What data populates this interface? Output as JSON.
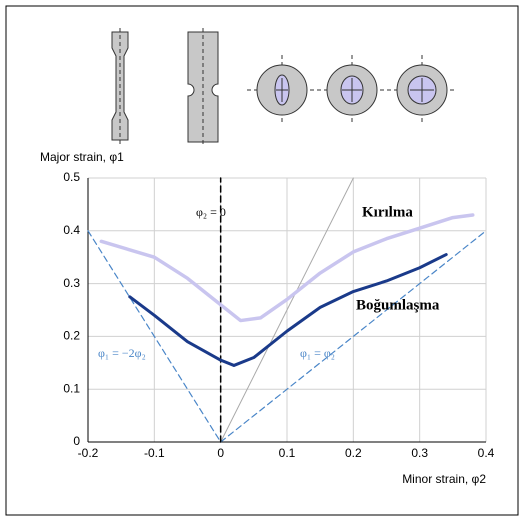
{
  "chart_data": {
    "type": "line",
    "xlabel": "Minor strain, φ2",
    "ylabel": "Major strain, φ1",
    "xlim": [
      -0.2,
      0.4
    ],
    "xticks": [
      -0.2,
      -0.1,
      0,
      0.1,
      0.2,
      0.3,
      0.4
    ],
    "ylim": [
      0,
      0.5
    ],
    "yticks": [
      0,
      0.1,
      0.2,
      0.3,
      0.4,
      0.5
    ],
    "grid": true,
    "series": [
      {
        "name": "Kırılma",
        "color": "#c9c5ef",
        "linewidth": 3.5,
        "dashed": false,
        "x": [
          -0.18,
          -0.1,
          -0.05,
          0,
          0.03,
          0.06,
          0.1,
          0.15,
          0.2,
          0.25,
          0.3,
          0.35,
          0.38
        ],
        "values": [
          0.38,
          0.35,
          0.31,
          0.26,
          0.23,
          0.235,
          0.27,
          0.32,
          0.36,
          0.385,
          0.405,
          0.425,
          0.43
        ]
      },
      {
        "name": "Boğumlaşma",
        "color": "#1a3a8a",
        "linewidth": 3,
        "dashed": false,
        "x": [
          -0.137,
          -0.1,
          -0.05,
          0,
          0.02,
          0.05,
          0.1,
          0.15,
          0.2,
          0.25,
          0.3,
          0.34
        ],
        "values": [
          0.275,
          0.24,
          0.19,
          0.155,
          0.145,
          0.16,
          0.21,
          0.255,
          0.285,
          0.305,
          0.33,
          0.355
        ]
      },
      {
        "name": "φ₂ = 0",
        "color": "#000000",
        "linewidth": 1.5,
        "dashed": true,
        "x": [
          0,
          0
        ],
        "values": [
          0,
          0.5
        ]
      },
      {
        "name": "φ₁ = −2φ₂",
        "color": "#4a86c8",
        "linewidth": 1.2,
        "dashed": true,
        "x": [
          -0.2,
          0
        ],
        "values": [
          0.4,
          0
        ]
      },
      {
        "name": "φ₁ = φ₂",
        "color": "#4a86c8",
        "linewidth": 1.2,
        "dashed": true,
        "x": [
          0,
          0.4
        ],
        "values": [
          0,
          0.4
        ]
      },
      {
        "color": "#aaaaaa",
        "linewidth": 1,
        "dashed": false,
        "x": [
          0,
          0.2
        ],
        "values": [
          0,
          0.5
        ]
      }
    ]
  }
}
